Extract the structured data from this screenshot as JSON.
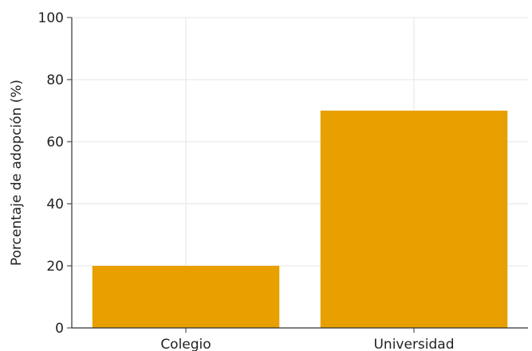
{
  "chart_data": {
    "type": "bar",
    "categories": [
      "Colegio",
      "Universidad"
    ],
    "values": [
      20,
      70
    ],
    "title": "",
    "xlabel": "",
    "ylabel": "Porcentaje de adopción (%)",
    "ylim": [
      0,
      100
    ],
    "yticks": [
      "0",
      "20",
      "40",
      "60",
      "80",
      "100"
    ],
    "grid": true,
    "bar_color": "#E8A000",
    "grid_color": "#E6E6E6",
    "axis_color": "#333333"
  }
}
